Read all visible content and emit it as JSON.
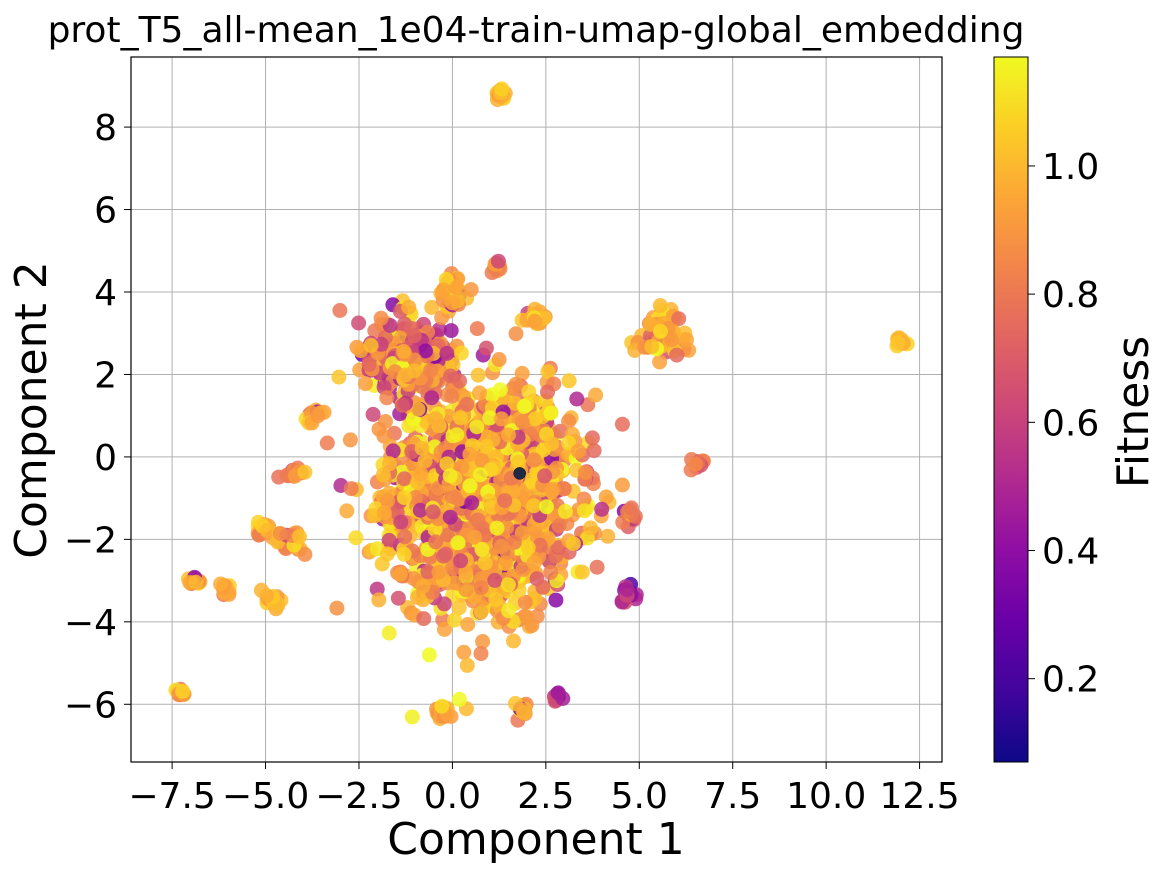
{
  "chart_data": {
    "type": "scatter",
    "title": "prot_T5_all-mean_1e04-train-umap-global_embedding",
    "xlabel": "Component 1",
    "ylabel": "Component 2",
    "xlim": [
      -8.6,
      13.1
    ],
    "ylim": [
      -7.4,
      9.7
    ],
    "xticks": [
      -7.5,
      -5.0,
      -2.5,
      0.0,
      2.5,
      5.0,
      7.5,
      10.0,
      12.5
    ],
    "xtick_labels": [
      "−7.5",
      "−5.0",
      "−2.5",
      "0.0",
      "2.5",
      "5.0",
      "7.5",
      "10.0",
      "12.5"
    ],
    "yticks": [
      -6,
      -4,
      -2,
      0,
      2,
      4,
      6,
      8
    ],
    "ytick_labels": [
      "−6",
      "−4",
      "−2",
      "0",
      "2",
      "4",
      "6",
      "8"
    ],
    "grid": true,
    "colormap": "plasma",
    "colorbar": {
      "label": "Fitness",
      "range": [
        0.07,
        1.17
      ],
      "ticks": [
        0.2,
        0.4,
        0.6,
        0.8,
        1.0
      ],
      "tick_labels": [
        "0.2",
        "0.4",
        "0.6",
        "0.8",
        "1.0"
      ]
    },
    "series": [
      {
        "clusters": [
          {
            "center": [
              0.8,
              -1.0
            ],
            "spread": [
              2.2,
              2.3
            ],
            "count": 1800,
            "fitness_mean": 0.93,
            "fitness_sd": 0.15
          },
          {
            "center": [
              -1.2,
              2.4
            ],
            "spread": [
              1.0,
              0.9
            ],
            "count": 260,
            "fitness_mean": 0.78,
            "fitness_sd": 0.2
          },
          {
            "center": [
              0.0,
              4.0
            ],
            "spread": [
              0.3,
              0.3
            ],
            "count": 40,
            "fitness_mean": 0.95,
            "fitness_sd": 0.08
          },
          {
            "center": [
              1.2,
              4.6
            ],
            "spread": [
              0.15,
              0.15
            ],
            "count": 10,
            "fitness_mean": 0.9,
            "fitness_sd": 0.1
          },
          {
            "center": [
              1.3,
              8.8
            ],
            "spread": [
              0.12,
              0.12
            ],
            "count": 18,
            "fitness_mean": 1.0,
            "fitness_sd": 0.05
          },
          {
            "center": [
              2.2,
              3.4
            ],
            "spread": [
              0.3,
              0.15
            ],
            "count": 25,
            "fitness_mean": 0.98,
            "fitness_sd": 0.05
          },
          {
            "center": [
              5.6,
              3.0
            ],
            "spread": [
              0.5,
              0.5
            ],
            "count": 60,
            "fitness_mean": 0.95,
            "fitness_sd": 0.12
          },
          {
            "center": [
              12.0,
              2.8
            ],
            "spread": [
              0.12,
              0.08
            ],
            "count": 14,
            "fitness_mean": 1.02,
            "fitness_sd": 0.04
          },
          {
            "center": [
              6.6,
              -0.2
            ],
            "spread": [
              0.2,
              0.12
            ],
            "count": 10,
            "fitness_mean": 0.75,
            "fitness_sd": 0.1
          },
          {
            "center": [
              -3.7,
              1.0
            ],
            "spread": [
              0.25,
              0.2
            ],
            "count": 10,
            "fitness_mean": 0.95,
            "fitness_sd": 0.08
          },
          {
            "center": [
              -4.3,
              -0.4
            ],
            "spread": [
              0.25,
              0.15
            ],
            "count": 12,
            "fitness_mean": 0.8,
            "fitness_sd": 0.15
          },
          {
            "center": [
              -5.1,
              -1.7
            ],
            "spread": [
              0.25,
              0.2
            ],
            "count": 14,
            "fitness_mean": 0.95,
            "fitness_sd": 0.08
          },
          {
            "center": [
              -4.3,
              -2.0
            ],
            "spread": [
              0.3,
              0.3
            ],
            "count": 18,
            "fitness_mean": 0.95,
            "fitness_sd": 0.08
          },
          {
            "center": [
              -6.9,
              -3.0
            ],
            "spread": [
              0.2,
              0.1
            ],
            "count": 12,
            "fitness_mean": 0.95,
            "fitness_sd": 0.08
          },
          {
            "center": [
              -6.1,
              -3.2
            ],
            "spread": [
              0.15,
              0.2
            ],
            "count": 10,
            "fitness_mean": 0.95,
            "fitness_sd": 0.08
          },
          {
            "center": [
              -4.8,
              -3.5
            ],
            "spread": [
              0.3,
              0.2
            ],
            "count": 14,
            "fitness_mean": 0.95,
            "fitness_sd": 0.08
          },
          {
            "center": [
              -7.3,
              -5.7
            ],
            "spread": [
              0.15,
              0.1
            ],
            "count": 10,
            "fitness_mean": 0.9,
            "fitness_sd": 0.1
          },
          {
            "center": [
              -0.3,
              -6.2
            ],
            "spread": [
              0.3,
              0.2
            ],
            "count": 16,
            "fitness_mean": 0.95,
            "fitness_sd": 0.1
          },
          {
            "center": [
              1.9,
              -6.1
            ],
            "spread": [
              0.2,
              0.2
            ],
            "count": 12,
            "fitness_mean": 0.95,
            "fitness_sd": 0.08
          },
          {
            "center": [
              2.8,
              -5.8
            ],
            "spread": [
              0.2,
              0.15
            ],
            "count": 10,
            "fitness_mean": 0.6,
            "fitness_sd": 0.2
          },
          {
            "center": [
              4.7,
              -3.3
            ],
            "spread": [
              0.2,
              0.2
            ],
            "count": 14,
            "fitness_mean": 0.45,
            "fitness_sd": 0.15
          },
          {
            "center": [
              4.8,
              -1.4
            ],
            "spread": [
              0.2,
              0.2
            ],
            "count": 12,
            "fitness_mean": 0.75,
            "fitness_sd": 0.15
          }
        ],
        "special_points": [
          {
            "x": 1.8,
            "y": -0.4,
            "fitness": 0.07
          }
        ]
      }
    ]
  }
}
